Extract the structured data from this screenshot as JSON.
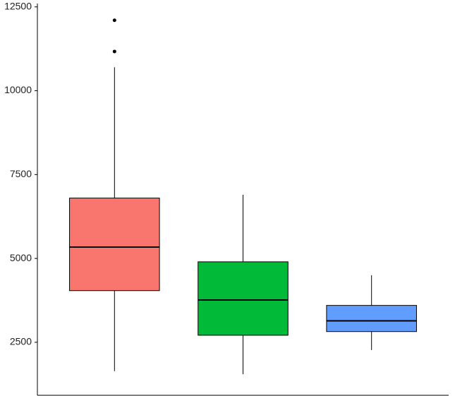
{
  "chart_data": {
    "type": "box",
    "categories": [
      null,
      null,
      null
    ],
    "series": [
      {
        "color": "#F8766D",
        "whislo": 1640,
        "q1": 4040,
        "med": 5340,
        "q3": 6800,
        "whishi": 10700,
        "outliers": [
          11170,
          12100
        ]
      },
      {
        "color": "#00BA38",
        "whislo": 1550,
        "q1": 2710,
        "med": 3760,
        "q3": 4900,
        "whishi": 6900,
        "outliers": []
      },
      {
        "color": "#619CFF",
        "whislo": 2270,
        "q1": 2820,
        "med": 3140,
        "q3": 3600,
        "whishi": 4500,
        "outliers": []
      }
    ],
    "ylim": [
      920,
      12600
    ],
    "yticks": [
      2500,
      5000,
      7500,
      10000,
      12500
    ],
    "grid": false
  }
}
